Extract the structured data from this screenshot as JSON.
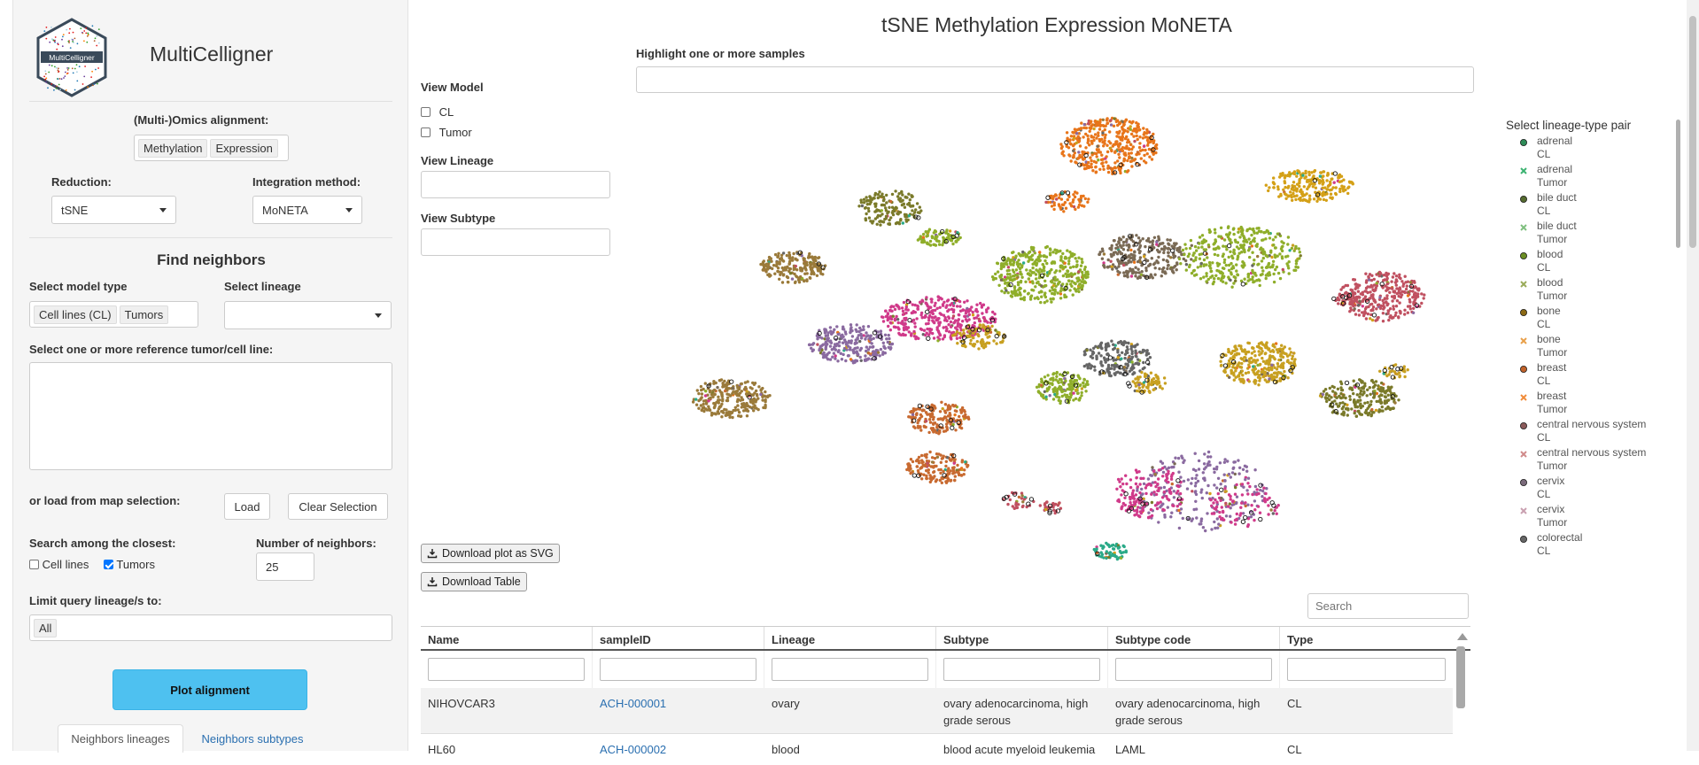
{
  "app": {
    "title": "MultiCelligner",
    "logo_text": "MultiCelligner"
  },
  "sidebar": {
    "omics_label": "(Multi-)Omics alignment:",
    "omics_chips": [
      "Methylation",
      "Expression"
    ],
    "reduction_label": "Reduction:",
    "reduction_value": "tSNE",
    "integration_label": "Integration method:",
    "integration_value": "MoNETA",
    "find_neighbors_title": "Find neighbors",
    "model_type_label": "Select model type",
    "model_type_chips": [
      "Cell lines (CL)",
      "Tumors"
    ],
    "lineage_label": "Select lineage",
    "lineage_value": "",
    "reference_label": "Select one or more reference tumor/cell line:",
    "load_label": "or load from map selection:",
    "load_button": "Load",
    "clear_button": "Clear Selection",
    "search_closest_label": "Search among the closest:",
    "cell_lines_label": "Cell lines",
    "cell_lines_checked": false,
    "tumors_label": "Tumors",
    "tumors_checked": true,
    "num_neighbors_label": "Number of neighbors:",
    "num_neighbors_value": "25",
    "limit_lineage_label": "Limit query lineage/s to:",
    "limit_lineage_chip": "All",
    "plot_button": "Plot alignment",
    "tabs": [
      "Neighbors lineages",
      "Neighbors subtypes"
    ]
  },
  "main": {
    "title": "tSNE Methylation Expression MoNETA",
    "highlight_label": "Highlight one or more samples",
    "view_model_label": "View Model",
    "view_model_options": [
      "CL",
      "Tumor"
    ],
    "view_lineage_label": "View Lineage",
    "view_subtype_label": "View Subtype",
    "download_svg": "Download plot as SVG",
    "download_table": "Download Table",
    "search_placeholder": "Search"
  },
  "legend": {
    "title": "Select lineage-type pair",
    "items": [
      {
        "lineage": "adrenal",
        "type": "CL",
        "marker": "circle",
        "color": "#2e8b57"
      },
      {
        "lineage": "adrenal",
        "type": "Tumor",
        "marker": "cross",
        "color": "#3cb371"
      },
      {
        "lineage": "bile duct",
        "type": "CL",
        "marker": "circle",
        "color": "#556b2f"
      },
      {
        "lineage": "bile duct",
        "type": "Tumor",
        "marker": "cross",
        "color": "#7fbf7f"
      },
      {
        "lineage": "blood",
        "type": "CL",
        "marker": "circle",
        "color": "#6b8e23"
      },
      {
        "lineage": "blood",
        "type": "Tumor",
        "marker": "cross",
        "color": "#9aab5a"
      },
      {
        "lineage": "bone",
        "type": "CL",
        "marker": "circle",
        "color": "#8b6914"
      },
      {
        "lineage": "bone",
        "type": "Tumor",
        "marker": "cross",
        "color": "#e8a04a"
      },
      {
        "lineage": "breast",
        "type": "CL",
        "marker": "circle",
        "color": "#c0622a"
      },
      {
        "lineage": "breast",
        "type": "Tumor",
        "marker": "cross",
        "color": "#f08c3a"
      },
      {
        "lineage": "central nervous system",
        "type": "CL",
        "marker": "circle",
        "color": "#8b5a5a"
      },
      {
        "lineage": "central nervous system",
        "type": "Tumor",
        "marker": "cross",
        "color": "#d08a8a"
      },
      {
        "lineage": "cervix",
        "type": "CL",
        "marker": "circle",
        "color": "#7a6a7a"
      },
      {
        "lineage": "cervix",
        "type": "Tumor",
        "marker": "cross",
        "color": "#c9a0b0"
      },
      {
        "lineage": "colorectal",
        "type": "CL",
        "marker": "circle",
        "color": "#666666"
      }
    ]
  },
  "table": {
    "columns": [
      "Name",
      "sampleID",
      "Lineage",
      "Subtype",
      "Subtype code",
      "Type"
    ],
    "rows": [
      {
        "name": "NIHOVCAR3",
        "sampleID": "ACH-000001",
        "lineage": "ovary",
        "subtype": "ovary adenocarcinoma, high grade serous",
        "subtype_code": "ovary adenocarcinoma, high grade serous",
        "type": "CL"
      },
      {
        "name": "HL60",
        "sampleID": "ACH-000002",
        "lineage": "blood",
        "subtype": "blood acute myeloid leukemia",
        "subtype_code": "LAML",
        "type": "CL"
      }
    ]
  },
  "colors": {
    "plot_button": "#4ec1f0",
    "link": "#2a6fb0",
    "scatter_palette": [
      "#e8751a",
      "#d4a017",
      "#7a7a2a",
      "#9a7a3a",
      "#8fae2a",
      "#7a6a55",
      "#d03a8a",
      "#8a6aa0",
      "#c8a020",
      "#c05060",
      "#2aaa88",
      "#c86a30",
      "#666666"
    ]
  }
}
